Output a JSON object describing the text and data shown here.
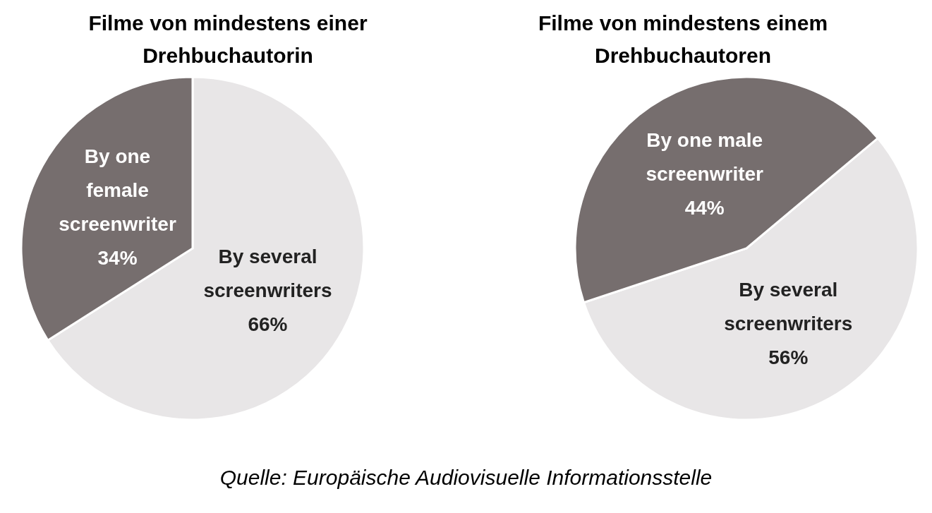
{
  "chart_data": [
    {
      "type": "pie",
      "title": "Filme von mindestens einer Drehbuchautorin",
      "categories": [
        "By several screenwriters",
        "By one female screenwriter"
      ],
      "values": [
        66,
        34
      ],
      "value_labels": [
        "66%",
        "34%"
      ],
      "colors": [
        "#e8e6e7",
        "#766e6e"
      ]
    },
    {
      "type": "pie",
      "title": "Filme von mindestens einem Drehbuchautoren",
      "categories": [
        "By several screenwriters",
        "By one male screenwriter"
      ],
      "values": [
        56,
        44
      ],
      "value_labels": [
        "56%",
        "44%"
      ],
      "colors": [
        "#e8e6e7",
        "#766e6e"
      ],
      "annotations": [
        "Quelle: Europäische Audiovisuelle Informationsstelle"
      ]
    }
  ]
}
